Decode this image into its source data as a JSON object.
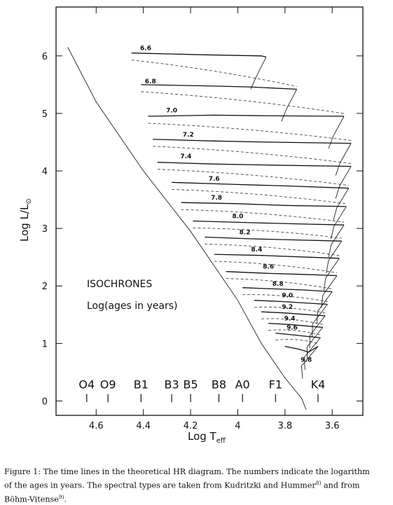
{
  "chart_data": {
    "type": "line",
    "xlabel_main": "Log T",
    "xlabel_sub": "eff",
    "ylabel_main": "Log L/L",
    "ylabel_sub": "⊙",
    "xlim": [
      4.77,
      3.47
    ],
    "ylim": [
      -0.25,
      6.85
    ],
    "xticks": [
      "4.6",
      "4.4",
      "4.2",
      "4",
      "3.8",
      "3.6"
    ],
    "xtick_values": [
      4.6,
      4.4,
      4.2,
      4.0,
      3.8,
      3.6
    ],
    "yticks": [
      "0",
      "1",
      "2",
      "3",
      "4",
      "5",
      "6"
    ],
    "ytick_values": [
      0,
      1,
      2,
      3,
      4,
      5,
      6
    ],
    "annotation_line1": "ISOCHRONES",
    "annotation_line2": "Log(ages in years)",
    "spectral_types": [
      {
        "label": "O4",
        "logT": 4.64
      },
      {
        "label": "O9",
        "logT": 4.55
      },
      {
        "label": "B1",
        "logT": 4.41
      },
      {
        "label": "B3",
        "logT": 4.28
      },
      {
        "label": "B5",
        "logT": 4.2
      },
      {
        "label": "B8",
        "logT": 4.08
      },
      {
        "label": "A0",
        "logT": 3.98
      },
      {
        "label": "F1",
        "logT": 3.84
      },
      {
        "label": "K4",
        "logT": 3.66
      }
    ],
    "zams": [
      [
        4.72,
        6.15
      ],
      [
        4.6,
        5.2
      ],
      [
        4.4,
        4.0
      ],
      [
        4.2,
        2.95
      ],
      [
        4.0,
        1.75
      ],
      [
        3.9,
        1.0
      ],
      [
        3.8,
        0.4
      ],
      [
        3.73,
        0.05
      ],
      [
        3.71,
        -0.15
      ]
    ],
    "isochrones": [
      {
        "label": "6.6",
        "label_x": 4.39,
        "label_y": 6.1,
        "points": [
          [
            4.45,
            6.05
          ],
          [
            4.15,
            6.02
          ],
          [
            3.9,
            6.0
          ],
          [
            3.88,
            5.98
          ]
        ]
      },
      {
        "label": "6.8",
        "label_x": 4.37,
        "label_y": 5.52,
        "points": [
          [
            4.41,
            5.5
          ],
          [
            4.15,
            5.48
          ],
          [
            3.95,
            5.46
          ],
          [
            3.75,
            5.42
          ]
        ]
      },
      {
        "label": "7.0",
        "label_x": 4.28,
        "label_y": 5.02,
        "points": [
          [
            4.38,
            4.95
          ],
          [
            4.1,
            4.97
          ],
          [
            3.9,
            4.96
          ],
          [
            3.55,
            4.95
          ]
        ]
      },
      {
        "label": "7.2",
        "label_x": 4.21,
        "label_y": 4.6,
        "points": [
          [
            4.36,
            4.55
          ],
          [
            4.1,
            4.52
          ],
          [
            3.85,
            4.5
          ],
          [
            3.52,
            4.48
          ]
        ]
      },
      {
        "label": "7.4",
        "label_x": 4.22,
        "label_y": 4.22,
        "points": [
          [
            4.34,
            4.15
          ],
          [
            4.1,
            4.12
          ],
          [
            3.85,
            4.1
          ],
          [
            3.52,
            4.08
          ]
        ]
      },
      {
        "label": "7.6",
        "label_x": 4.1,
        "label_y": 3.83,
        "points": [
          [
            4.28,
            3.8
          ],
          [
            4.05,
            3.77
          ],
          [
            3.8,
            3.74
          ],
          [
            3.53,
            3.7
          ]
        ]
      },
      {
        "label": "7.8",
        "label_x": 4.09,
        "label_y": 3.5,
        "points": [
          [
            4.24,
            3.45
          ],
          [
            4.0,
            3.43
          ],
          [
            3.8,
            3.4
          ],
          [
            3.54,
            3.38
          ]
        ]
      },
      {
        "label": "8.0",
        "label_x": 4.0,
        "label_y": 3.18,
        "points": [
          [
            4.19,
            3.13
          ],
          [
            3.95,
            3.1
          ],
          [
            3.75,
            3.08
          ],
          [
            3.55,
            3.06
          ]
        ]
      },
      {
        "label": "8.2",
        "label_x": 3.97,
        "label_y": 2.9,
        "points": [
          [
            4.14,
            2.85
          ],
          [
            3.95,
            2.82
          ],
          [
            3.75,
            2.8
          ],
          [
            3.56,
            2.78
          ]
        ]
      },
      {
        "label": "8.4",
        "label_x": 3.92,
        "label_y": 2.6,
        "points": [
          [
            4.1,
            2.55
          ],
          [
            3.9,
            2.53
          ],
          [
            3.7,
            2.5
          ],
          [
            3.57,
            2.48
          ]
        ]
      },
      {
        "label": "8.6",
        "label_x": 3.87,
        "label_y": 2.3,
        "points": [
          [
            4.05,
            2.25
          ],
          [
            3.88,
            2.22
          ],
          [
            3.72,
            2.2
          ],
          [
            3.58,
            2.18
          ]
        ]
      },
      {
        "label": "8.8",
        "label_x": 3.83,
        "label_y": 2.0,
        "points": [
          [
            3.98,
            1.97
          ],
          [
            3.85,
            1.95
          ],
          [
            3.72,
            1.93
          ],
          [
            3.6,
            1.9
          ]
        ]
      },
      {
        "label": "9.0",
        "label_x": 3.79,
        "label_y": 1.8,
        "points": [
          [
            3.93,
            1.75
          ],
          [
            3.82,
            1.73
          ],
          [
            3.7,
            1.7
          ],
          [
            3.62,
            1.68
          ]
        ]
      },
      {
        "label": "9.2",
        "label_x": 3.79,
        "label_y": 1.6,
        "points": [
          [
            3.9,
            1.55
          ],
          [
            3.8,
            1.53
          ],
          [
            3.7,
            1.5
          ],
          [
            3.63,
            1.48
          ]
        ]
      },
      {
        "label": "9.4",
        "label_x": 3.78,
        "label_y": 1.4,
        "points": [
          [
            3.87,
            1.35
          ],
          [
            3.78,
            1.33
          ],
          [
            3.7,
            1.3
          ],
          [
            3.64,
            1.28
          ]
        ]
      },
      {
        "label": "9.6",
        "label_x": 3.77,
        "label_y": 1.24,
        "points": [
          [
            3.84,
            1.18
          ],
          [
            3.77,
            1.15
          ],
          [
            3.7,
            1.12
          ],
          [
            3.65,
            1.1
          ]
        ]
      },
      {
        "label": "9.8",
        "label_x": 3.71,
        "label_y": 0.68,
        "points": [
          [
            3.8,
            0.95
          ],
          [
            3.74,
            0.9
          ],
          [
            3.7,
            0.85
          ],
          [
            3.66,
            0.95
          ]
        ]
      }
    ]
  },
  "caption": {
    "line1": "Figure 1: The time lines in the theoretical HR diagram. The numbers indicate the logarithm",
    "line2a": "of the ages in years. The spectral types are taken from Kudritzki and Hummer",
    "ref1": "8)",
    "line2b": " and from",
    "line3a": "Böhm-Vitense",
    "ref2": "9)",
    "line3b": "."
  }
}
